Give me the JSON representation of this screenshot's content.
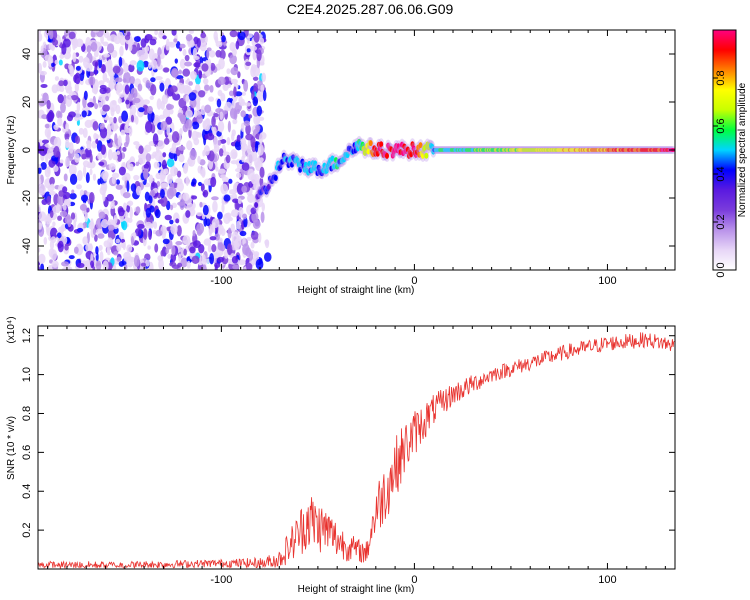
{
  "title": "C2E4.2025.287.06.06.G09",
  "chart_data": [
    {
      "type": "heatmap",
      "title": "C2E4.2025.287.06.06.G09",
      "xlabel": "Height of straight line (km)",
      "ylabel": "Frequency (Hz)",
      "xlim": [
        -195,
        135
      ],
      "ylim": [
        -50,
        50
      ],
      "xticks": [
        -100,
        0,
        100
      ],
      "xtick_labels": [
        "-100",
        "0",
        "100"
      ],
      "yticks": [
        -40,
        -20,
        0,
        20,
        40
      ],
      "ytick_labels": [
        "-40",
        "-20",
        "0",
        "20",
        "40"
      ],
      "colorbar": {
        "label": "Normalized spectral amplitude",
        "range": [
          0,
          1
        ],
        "ticks": [
          0.0,
          0.2,
          0.4,
          0.6,
          0.8
        ],
        "tick_labels": [
          "0.0",
          "0.2",
          "0.4",
          "0.6",
          "0.8"
        ],
        "colormap": [
          "#ffffff",
          "#e7d6f7",
          "#b992ea",
          "#7a3cdc",
          "#5a1ae0",
          "#0000ff",
          "#00d5ff",
          "#00ff40",
          "#c8ff00",
          "#ffff00",
          "#ff8000",
          "#ff0000",
          "#ff0080"
        ]
      },
      "trace": {
        "description_points": [
          {
            "x": -82,
            "freq": -22,
            "amp": 0.35
          },
          {
            "x": -75,
            "freq": -14,
            "amp": 0.4
          },
          {
            "x": -68,
            "freq": -4,
            "amp": 0.45
          },
          {
            "x": -60,
            "freq": -6,
            "amp": 0.45
          },
          {
            "x": -50,
            "freq": -8,
            "amp": 0.45
          },
          {
            "x": -40,
            "freq": -5,
            "amp": 0.5
          },
          {
            "x": -30,
            "freq": 2,
            "amp": 0.45
          },
          {
            "x": -20,
            "freq": 0,
            "amp": 0.95
          },
          {
            "x": -10,
            "freq": 0,
            "amp": 0.95
          },
          {
            "x": 0,
            "freq": 0,
            "amp": 0.95
          },
          {
            "x": 10,
            "freq": 0,
            "amp": 0.5
          },
          {
            "x": 134,
            "freq": 0,
            "amp": 0.95
          }
        ]
      }
    },
    {
      "type": "line",
      "xlabel": "Height of straight line (km)",
      "ylabel": "SNR (10 * v/v)",
      "y_multiplier": "(x10⁴)",
      "xlim": [
        -195,
        135
      ],
      "ylim": [
        0,
        1.25
      ],
      "xticks": [
        -100,
        0,
        100
      ],
      "xtick_labels": [
        "-100",
        "0",
        "100"
      ],
      "yticks": [
        0.2,
        0.4,
        0.6,
        0.8,
        1.0,
        1.2
      ],
      "ytick_labels": [
        "0.2",
        "0.4",
        "0.6",
        "0.8",
        "1.0",
        "1.2"
      ],
      "color": "#e8322e",
      "series": [
        {
          "name": "SNR",
          "x": [
            -195,
            -150,
            -100,
            -78,
            -70,
            -60,
            -55,
            -50,
            -45,
            -40,
            -35,
            -30,
            -25,
            -20,
            -15,
            -10,
            -5,
            0,
            10,
            20,
            30,
            40,
            50,
            60,
            70,
            80,
            90,
            100,
            110,
            120,
            135
          ],
          "y": [
            0.02,
            0.02,
            0.03,
            0.03,
            0.05,
            0.18,
            0.26,
            0.22,
            0.2,
            0.15,
            0.12,
            0.1,
            0.08,
            0.3,
            0.4,
            0.52,
            0.62,
            0.7,
            0.82,
            0.9,
            0.95,
            1.0,
            1.03,
            1.06,
            1.09,
            1.12,
            1.14,
            1.16,
            1.17,
            1.18,
            1.15
          ],
          "noise": [
            0.02,
            0.02,
            0.02,
            0.03,
            0.05,
            0.12,
            0.16,
            0.14,
            0.12,
            0.1,
            0.08,
            0.06,
            0.06,
            0.14,
            0.16,
            0.16,
            0.14,
            0.12,
            0.08,
            0.06,
            0.05,
            0.04,
            0.04,
            0.04,
            0.04,
            0.04,
            0.04,
            0.04,
            0.04,
            0.04,
            0.04
          ]
        }
      ]
    }
  ]
}
